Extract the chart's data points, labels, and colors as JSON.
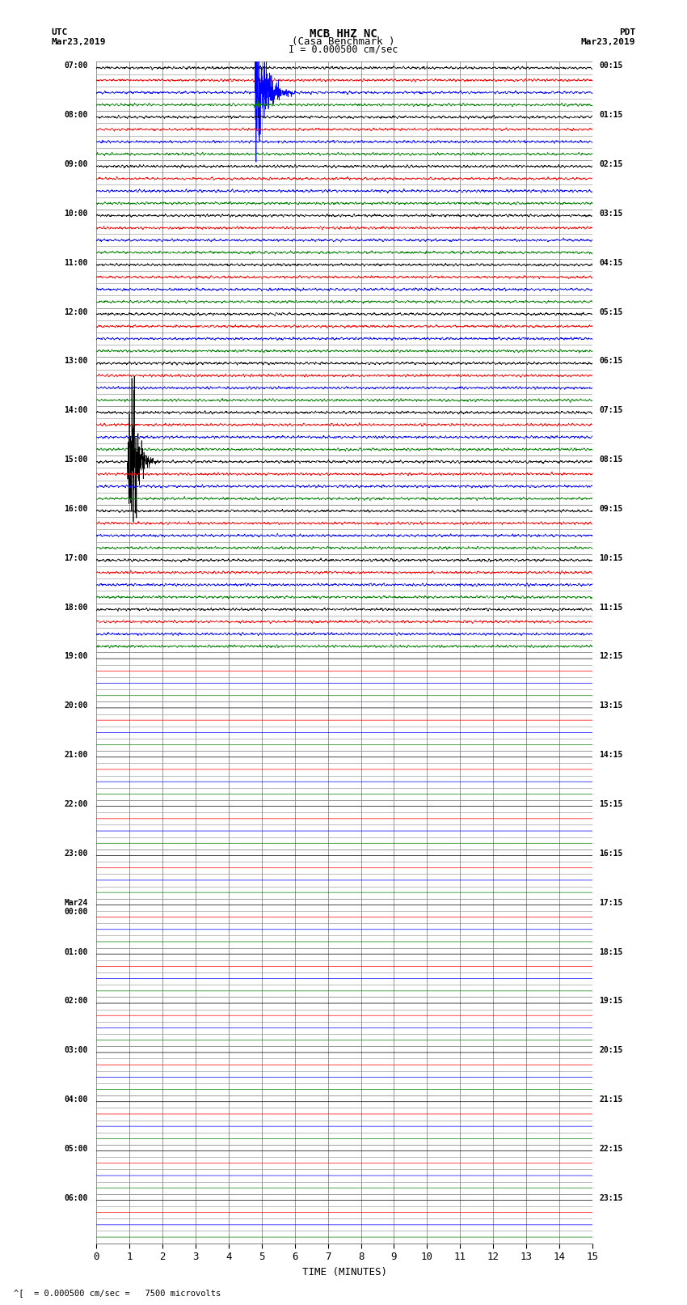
{
  "title_line1": "MCB HHZ NC",
  "title_line2": "(Casa Benchmark )",
  "scale_label": "I = 0.000500 cm/sec",
  "utc_label": "UTC\nMar23,2019",
  "pdt_label": "PDT\nMar23,2019",
  "xlabel": "TIME (MINUTES)",
  "bottom_note": "^[  = 0.000500 cm/sec =   7500 microvolts",
  "left_times_utc": [
    "07:00",
    "08:00",
    "09:00",
    "10:00",
    "11:00",
    "12:00",
    "13:00",
    "14:00",
    "15:00",
    "16:00",
    "17:00",
    "18:00",
    "19:00",
    "20:00",
    "21:00",
    "22:00",
    "23:00",
    "Mar24\n00:00",
    "01:00",
    "02:00",
    "03:00",
    "04:00",
    "05:00",
    "06:00"
  ],
  "right_times_pdt": [
    "00:15",
    "01:15",
    "02:15",
    "03:15",
    "04:15",
    "05:15",
    "06:15",
    "07:15",
    "08:15",
    "09:15",
    "10:15",
    "11:15",
    "12:15",
    "13:15",
    "14:15",
    "15:15",
    "16:15",
    "17:15",
    "18:15",
    "19:15",
    "20:15",
    "21:15",
    "22:15",
    "23:15"
  ],
  "num_rows": 24,
  "traces_per_row": 4,
  "trace_colors": [
    "black",
    "red",
    "blue",
    "green"
  ],
  "bg_color": "white",
  "grid_color": "#888888",
  "xmin": 0,
  "xmax": 15,
  "xticks": [
    0,
    1,
    2,
    3,
    4,
    5,
    6,
    7,
    8,
    9,
    10,
    11,
    12,
    13,
    14,
    15
  ],
  "active_rows": 12,
  "noise_amplitude": 0.04,
  "event1_row": 0,
  "event1_trace": 2,
  "event1_time": 4.85,
  "event2_row": 8,
  "event2_trace": 0,
  "event2_time": 1.15
}
